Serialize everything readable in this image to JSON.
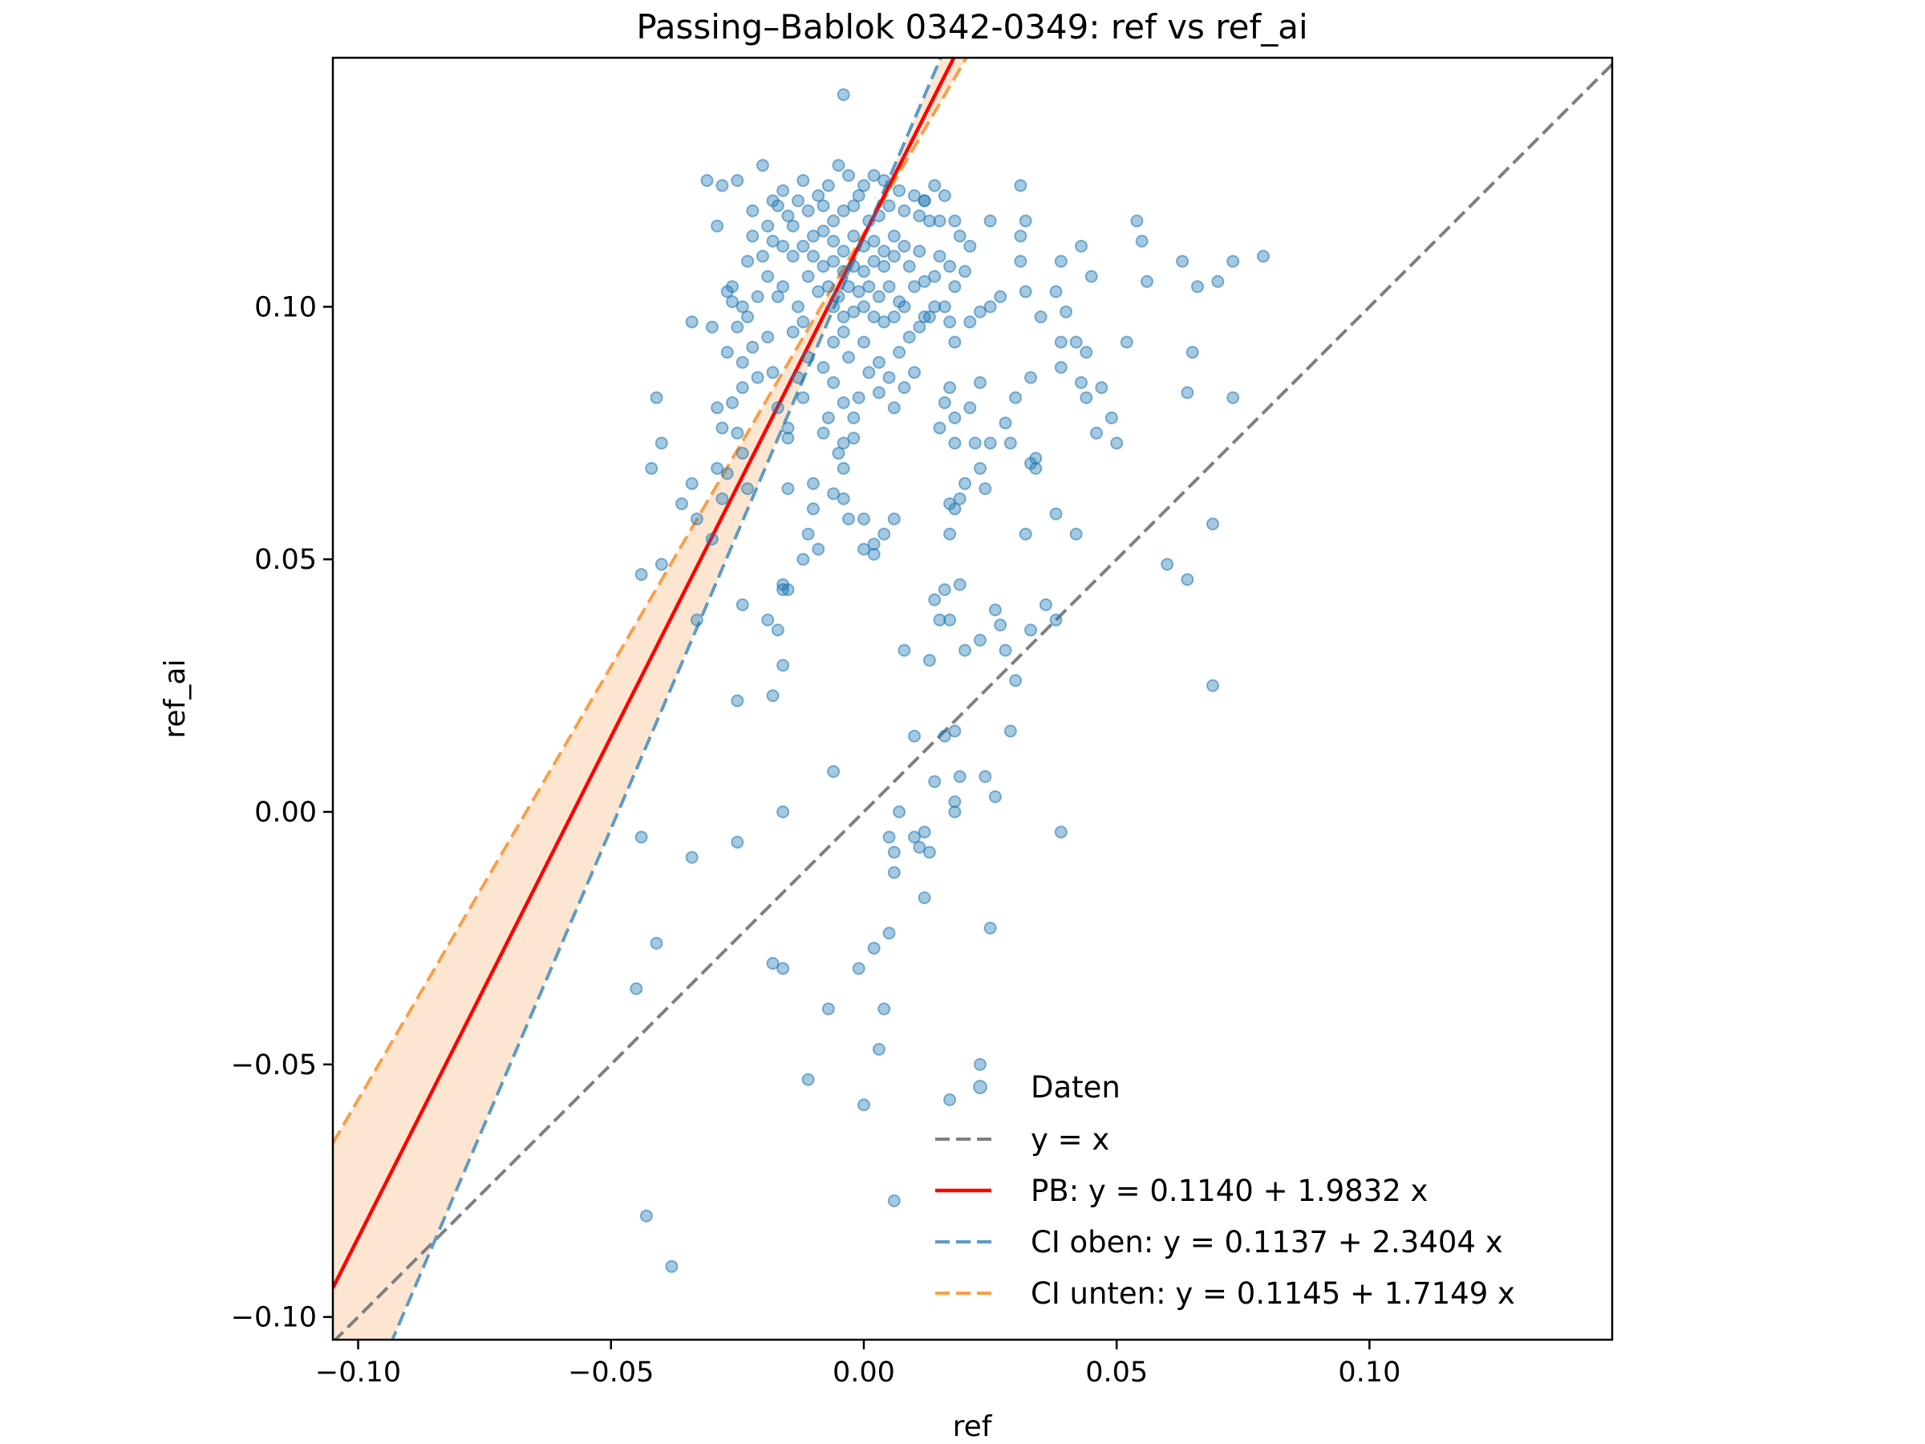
{
  "chart_data": {
    "type": "scatter",
    "title": "Passing–Bablok 0342-0349: ref vs ref_ai",
    "xlabel": "ref",
    "ylabel": "ref_ai",
    "xlim": [
      -0.105,
      0.148
    ],
    "ylim": [
      -0.1045,
      0.1493
    ],
    "xticks": [
      -0.1,
      -0.05,
      0.0,
      0.05,
      0.1
    ],
    "xtick_labels": [
      "−0.10",
      "−0.05",
      "0.00",
      "0.05",
      "0.10"
    ],
    "yticks": [
      -0.1,
      -0.05,
      0.0,
      0.05,
      0.1
    ],
    "ytick_labels": [
      "−0.10",
      "−0.05",
      "0.00",
      "0.05",
      "0.10"
    ],
    "grid": false,
    "legend_position": "lower-right",
    "colors": {
      "points": "#1f77b4",
      "identity": "#7f7f7f",
      "pb_line": "#ff0000",
      "ci_upper": "#5b9bc8",
      "ci_lower": "#f7a04a",
      "ci_band": "#fde3cc"
    },
    "lines": [
      {
        "key": "identity",
        "legend": "y = x",
        "intercept": 0.0,
        "slope": 1.0,
        "style": "dashed"
      },
      {
        "key": "pb_line",
        "legend": "PB: y = 0.1140 + 1.9832 x",
        "intercept": 0.114,
        "slope": 1.9832,
        "style": "solid"
      },
      {
        "key": "ci_upper",
        "legend": "CI oben: y = 0.1137 + 2.3404 x",
        "intercept": 0.1137,
        "slope": 2.3404,
        "style": "dashed"
      },
      {
        "key": "ci_lower",
        "legend": "CI unten: y = 0.1145 + 1.7149 x",
        "intercept": 0.1145,
        "slope": 1.7149,
        "style": "dashed"
      }
    ],
    "points_legend": "Daten",
    "points": [
      [
        -0.004,
        0.142
      ],
      [
        -0.025,
        0.125
      ],
      [
        -0.02,
        0.128
      ],
      [
        -0.017,
        0.12
      ],
      [
        -0.028,
        0.124
      ],
      [
        -0.031,
        0.125
      ],
      [
        -0.029,
        0.116
      ],
      [
        -0.022,
        0.119
      ],
      [
        -0.019,
        0.116
      ],
      [
        -0.015,
        0.118
      ],
      [
        -0.012,
        0.125
      ],
      [
        -0.01,
        0.114
      ],
      [
        -0.008,
        0.12
      ],
      [
        -0.006,
        0.117
      ],
      [
        -0.005,
        0.128
      ],
      [
        -0.003,
        0.126
      ],
      [
        -0.002,
        0.12
      ],
      [
        0.0,
        0.124
      ],
      [
        0.002,
        0.126
      ],
      [
        0.004,
        0.125
      ],
      [
        0.007,
        0.123
      ],
      [
        0.01,
        0.122
      ],
      [
        0.012,
        0.121
      ],
      [
        0.013,
        0.117
      ],
      [
        0.015,
        0.117
      ],
      [
        -0.013,
        0.121
      ],
      [
        -0.016,
        0.123
      ],
      [
        -0.018,
        0.121
      ],
      [
        -0.014,
        0.116
      ],
      [
        -0.009,
        0.122
      ],
      [
        -0.007,
        0.124
      ],
      [
        -0.001,
        0.122
      ],
      [
        0.003,
        0.118
      ],
      [
        0.005,
        0.12
      ],
      [
        0.008,
        0.119
      ],
      [
        0.011,
        0.118
      ],
      [
        -0.011,
        0.119
      ],
      [
        -0.004,
        0.119
      ],
      [
        0.001,
        0.117
      ],
      [
        -0.008,
        0.115
      ],
      [
        -0.006,
        0.113
      ],
      [
        -0.004,
        0.111
      ],
      [
        -0.002,
        0.114
      ],
      [
        0.0,
        0.112
      ],
      [
        0.002,
        0.113
      ],
      [
        0.004,
        0.111
      ],
      [
        0.006,
        0.114
      ],
      [
        0.008,
        0.112
      ],
      [
        -0.01,
        0.11
      ],
      [
        -0.012,
        0.112
      ],
      [
        -0.014,
        0.11
      ],
      [
        -0.008,
        0.108
      ],
      [
        -0.006,
        0.109
      ],
      [
        -0.004,
        0.107
      ],
      [
        -0.002,
        0.108
      ],
      [
        0.0,
        0.107
      ],
      [
        0.002,
        0.109
      ],
      [
        0.004,
        0.108
      ],
      [
        0.006,
        0.11
      ],
      [
        0.009,
        0.108
      ],
      [
        0.011,
        0.111
      ],
      [
        -0.003,
        0.104
      ],
      [
        -0.001,
        0.103
      ],
      [
        0.001,
        0.104
      ],
      [
        0.003,
        0.102
      ],
      [
        0.005,
        0.104
      ],
      [
        -0.005,
        0.102
      ],
      [
        -0.007,
        0.104
      ],
      [
        0.007,
        0.101
      ],
      [
        -0.002,
        0.099
      ],
      [
        0.0,
        0.1
      ],
      [
        0.002,
        0.098
      ],
      [
        0.004,
        0.097
      ],
      [
        -0.004,
        0.098
      ],
      [
        -0.006,
        0.1
      ],
      [
        0.006,
        0.098
      ],
      [
        0.008,
        0.1
      ],
      [
        -0.011,
        0.106
      ],
      [
        -0.009,
        0.103
      ],
      [
        0.01,
        0.104
      ],
      [
        0.012,
        0.105
      ],
      [
        0.014,
        0.106
      ],
      [
        0.015,
        0.11
      ],
      [
        -0.016,
        0.112
      ],
      [
        -0.018,
        0.113
      ],
      [
        -0.02,
        0.11
      ],
      [
        -0.022,
        0.114
      ],
      [
        -0.023,
        0.109
      ],
      [
        -0.019,
        0.106
      ],
      [
        -0.017,
        0.102
      ],
      [
        -0.021,
        0.102
      ],
      [
        -0.024,
        0.1
      ],
      [
        -0.026,
        0.104
      ],
      [
        -0.027,
        0.103
      ],
      [
        -0.023,
        0.098
      ],
      [
        -0.025,
        0.096
      ],
      [
        -0.016,
        0.104
      ],
      [
        -0.013,
        0.1
      ],
      [
        -0.012,
        0.097
      ],
      [
        -0.014,
        0.095
      ],
      [
        0.011,
        0.096
      ],
      [
        0.013,
        0.098
      ],
      [
        0.016,
        0.1
      ],
      [
        0.014,
        0.1
      ],
      [
        0.012,
        0.098
      ],
      [
        0.017,
        0.097
      ],
      [
        0.018,
        0.104
      ],
      [
        0.017,
        0.108
      ],
      [
        0.02,
        0.107
      ],
      [
        0.019,
        0.114
      ],
      [
        0.021,
        0.112
      ],
      [
        0.018,
        0.117
      ],
      [
        0.016,
        0.122
      ],
      [
        0.014,
        0.124
      ],
      [
        0.012,
        0.121
      ],
      [
        0.025,
        0.117
      ],
      [
        0.031,
        0.124
      ],
      [
        0.032,
        0.117
      ],
      [
        0.031,
        0.114
      ],
      [
        0.031,
        0.109
      ],
      [
        0.027,
        0.102
      ],
      [
        0.025,
        0.1
      ],
      [
        0.023,
        0.099
      ],
      [
        0.021,
        0.097
      ],
      [
        0.018,
        0.093
      ],
      [
        0.035,
        0.098
      ],
      [
        0.032,
        0.103
      ],
      [
        0.033,
        0.086
      ],
      [
        0.038,
        0.103
      ],
      [
        0.039,
        0.093
      ],
      [
        0.04,
        0.099
      ],
      [
        0.039,
        0.109
      ],
      [
        0.043,
        0.112
      ],
      [
        0.045,
        0.106
      ],
      [
        0.042,
        0.093
      ],
      [
        0.044,
        0.091
      ],
      [
        0.046,
        0.075
      ],
      [
        0.049,
        0.078
      ],
      [
        0.05,
        0.073
      ],
      [
        0.054,
        0.117
      ],
      [
        0.055,
        0.113
      ],
      [
        0.056,
        0.105
      ],
      [
        0.063,
        0.109
      ],
      [
        0.065,
        0.091
      ],
      [
        0.066,
        0.104
      ],
      [
        0.07,
        0.105
      ],
      [
        0.073,
        0.109
      ],
      [
        0.079,
        0.11
      ],
      [
        0.064,
        0.083
      ],
      [
        0.073,
        0.082
      ],
      [
        0.069,
        0.057
      ],
      [
        0.069,
        0.025
      ],
      [
        0.064,
        0.046
      ],
      [
        0.06,
        0.049
      ],
      [
        0.052,
        0.093
      ],
      [
        0.047,
        0.084
      ],
      [
        0.043,
        0.085
      ],
      [
        0.044,
        0.082
      ],
      [
        0.039,
        0.088
      ],
      [
        0.034,
        0.07
      ],
      [
        0.033,
        0.069
      ],
      [
        0.029,
        0.073
      ],
      [
        0.028,
        0.077
      ],
      [
        0.03,
        0.082
      ],
      [
        0.025,
        0.073
      ],
      [
        0.023,
        0.085
      ],
      [
        0.017,
        0.084
      ],
      [
        0.016,
        0.081
      ],
      [
        0.018,
        0.078
      ],
      [
        0.021,
        0.08
      ],
      [
        0.015,
        0.076
      ],
      [
        0.018,
        0.073
      ],
      [
        0.022,
        0.073
      ],
      [
        0.02,
        0.065
      ],
      [
        0.023,
        0.068
      ],
      [
        0.024,
        0.064
      ],
      [
        0.017,
        0.061
      ],
      [
        0.018,
        0.06
      ],
      [
        0.019,
        0.062
      ],
      [
        0.017,
        0.055
      ],
      [
        0.016,
        0.044
      ],
      [
        0.017,
        0.038
      ],
      [
        0.019,
        0.045
      ],
      [
        0.014,
        0.042
      ],
      [
        0.015,
        0.038
      ],
      [
        0.02,
        0.032
      ],
      [
        0.023,
        0.034
      ],
      [
        0.026,
        0.04
      ],
      [
        0.027,
        0.037
      ],
      [
        0.028,
        0.032
      ],
      [
        0.03,
        0.026
      ],
      [
        0.034,
        0.068
      ],
      [
        0.038,
        0.059
      ],
      [
        0.042,
        0.055
      ],
      [
        0.038,
        0.038
      ],
      [
        0.033,
        0.036
      ],
      [
        0.013,
        0.03
      ],
      [
        0.008,
        0.032
      ],
      [
        0.006,
        0.058
      ],
      [
        0.004,
        0.055
      ],
      [
        0.002,
        0.053
      ],
      [
        0.0,
        0.052
      ],
      [
        0.002,
        0.051
      ],
      [
        0.0,
        0.058
      ],
      [
        -0.003,
        0.058
      ],
      [
        -0.004,
        0.062
      ],
      [
        -0.006,
        0.063
      ],
      [
        -0.01,
        0.06
      ],
      [
        -0.01,
        0.065
      ],
      [
        -0.015,
        0.064
      ],
      [
        -0.011,
        0.055
      ],
      [
        -0.016,
        0.044
      ],
      [
        -0.016,
        0.045
      ],
      [
        -0.015,
        0.044
      ],
      [
        -0.016,
        0.029
      ],
      [
        -0.018,
        0.023
      ],
      [
        -0.025,
        0.022
      ],
      [
        -0.033,
        0.038
      ],
      [
        -0.03,
        0.054
      ],
      [
        -0.033,
        0.058
      ],
      [
        -0.036,
        0.061
      ],
      [
        -0.034,
        0.065
      ],
      [
        -0.029,
        0.068
      ],
      [
        -0.027,
        0.067
      ],
      [
        -0.023,
        0.064
      ],
      [
        -0.024,
        0.071
      ],
      [
        -0.025,
        0.075
      ],
      [
        -0.028,
        0.076
      ],
      [
        -0.029,
        0.08
      ],
      [
        -0.026,
        0.081
      ],
      [
        -0.024,
        0.084
      ],
      [
        -0.021,
        0.086
      ],
      [
        -0.024,
        0.089
      ],
      [
        -0.027,
        0.091
      ],
      [
        -0.022,
        0.092
      ],
      [
        -0.019,
        0.094
      ],
      [
        -0.018,
        0.087
      ],
      [
        -0.017,
        0.08
      ],
      [
        -0.015,
        0.076
      ],
      [
        -0.012,
        0.082
      ],
      [
        -0.013,
        0.086
      ],
      [
        -0.011,
        0.09
      ],
      [
        -0.008,
        0.088
      ],
      [
        -0.006,
        0.085
      ],
      [
        -0.004,
        0.081
      ],
      [
        -0.007,
        0.078
      ],
      [
        -0.002,
        0.078
      ],
      [
        -0.001,
        0.082
      ],
      [
        0.001,
        0.087
      ],
      [
        -0.003,
        0.09
      ],
      [
        -0.006,
        0.093
      ],
      [
        -0.004,
        0.095
      ],
      [
        0.0,
        0.093
      ],
      [
        0.003,
        0.089
      ],
      [
        0.005,
        0.086
      ],
      [
        0.003,
        0.083
      ],
      [
        0.006,
        0.08
      ],
      [
        0.008,
        0.084
      ],
      [
        0.01,
        0.087
      ],
      [
        0.007,
        0.091
      ],
      [
        0.009,
        0.094
      ],
      [
        -0.002,
        0.074
      ],
      [
        -0.004,
        0.073
      ],
      [
        -0.005,
        0.071
      ],
      [
        -0.008,
        0.075
      ],
      [
        -0.015,
        0.074
      ],
      [
        -0.028,
        0.062
      ],
      [
        -0.034,
        0.097
      ],
      [
        -0.03,
        0.096
      ],
      [
        -0.026,
        0.101
      ],
      [
        -0.04,
        0.073
      ],
      [
        -0.042,
        0.068
      ],
      [
        -0.041,
        0.082
      ],
      [
        -0.04,
        0.049
      ],
      [
        -0.044,
        0.047
      ],
      [
        -0.044,
        -0.005
      ],
      [
        -0.034,
        -0.009
      ],
      [
        -0.025,
        -0.006
      ],
      [
        -0.016,
        0.0
      ],
      [
        -0.016,
        -0.031
      ],
      [
        -0.018,
        -0.03
      ],
      [
        -0.041,
        -0.026
      ],
      [
        -0.045,
        -0.035
      ],
      [
        -0.043,
        -0.08
      ],
      [
        -0.038,
        -0.09
      ],
      [
        -0.007,
        -0.039
      ],
      [
        -0.011,
        -0.053
      ],
      [
        0.0,
        -0.058
      ],
      [
        0.003,
        -0.047
      ],
      [
        0.004,
        -0.039
      ],
      [
        0.006,
        -0.077
      ],
      [
        0.017,
        -0.057
      ],
      [
        0.023,
        -0.05
      ],
      [
        0.002,
        -0.027
      ],
      [
        -0.001,
        -0.031
      ],
      [
        -0.006,
        0.008
      ],
      [
        0.006,
        -0.012
      ],
      [
        0.005,
        -0.024
      ],
      [
        0.005,
        -0.005
      ],
      [
        0.006,
        -0.008
      ],
      [
        0.007,
        -0.0
      ],
      [
        0.01,
        -0.005
      ],
      [
        0.011,
        -0.007
      ],
      [
        0.012,
        -0.017
      ],
      [
        0.013,
        -0.008
      ],
      [
        0.012,
        -0.004
      ],
      [
        0.01,
        0.015
      ],
      [
        0.014,
        0.006
      ],
      [
        0.016,
        0.015
      ],
      [
        0.018,
        0.016
      ],
      [
        0.019,
        0.007
      ],
      [
        0.018,
        0.0
      ],
      [
        0.018,
        0.002
      ],
      [
        0.024,
        0.007
      ],
      [
        0.026,
        0.003
      ],
      [
        0.025,
        -0.023
      ],
      [
        0.029,
        0.016
      ],
      [
        0.039,
        -0.004
      ],
      [
        0.032,
        0.055
      ],
      [
        0.036,
        0.041
      ],
      [
        -0.024,
        0.041
      ],
      [
        -0.019,
        0.038
      ],
      [
        -0.017,
        0.036
      ],
      [
        -0.012,
        0.05
      ],
      [
        -0.009,
        0.052
      ],
      [
        -0.004,
        0.068
      ]
    ]
  }
}
